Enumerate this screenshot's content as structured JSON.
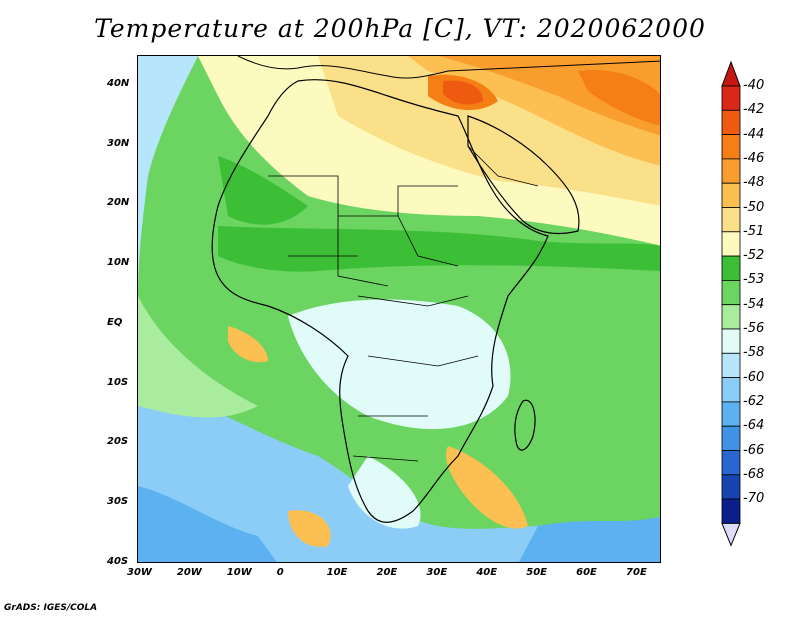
{
  "title": "Temperature at 200hPa [C], VT: 2020062000",
  "footer": "GrADS: IGES/COLA",
  "map": {
    "lon_range": [
      -30,
      75
    ],
    "lat_range": [
      -40,
      45
    ],
    "lon_ticks": [
      "30W",
      "20W",
      "10W",
      "0",
      "10E",
      "20E",
      "30E",
      "40E",
      "50E",
      "60E",
      "70E"
    ],
    "lat_ticks": [
      "40N",
      "30N",
      "20N",
      "10N",
      "EQ",
      "10S",
      "20S",
      "30S",
      "40S"
    ]
  },
  "colorbar": {
    "labels": [
      "-40",
      "-42",
      "-44",
      "-46",
      "-48",
      "-50",
      "-51",
      "-52",
      "-53",
      "-54",
      "-56",
      "-58",
      "-60",
      "-62",
      "-64",
      "-66",
      "-68",
      "-70"
    ],
    "colors": [
      "#d9271a",
      "#ee5a10",
      "#f57f14",
      "#f99d2e",
      "#fbbf52",
      "#fbe08a",
      "#fdfac0",
      "#3cbf36",
      "#6cd460",
      "#a9ec9e",
      "#e1fcf8",
      "#b7e5fb",
      "#8bcdf7",
      "#5cb2f0",
      "#3f92e6",
      "#2966cf",
      "#1744b0",
      "#0a1f8c"
    ],
    "top_cap_color": "#c51710",
    "bottom_cap_color": "#dedcfa"
  }
}
